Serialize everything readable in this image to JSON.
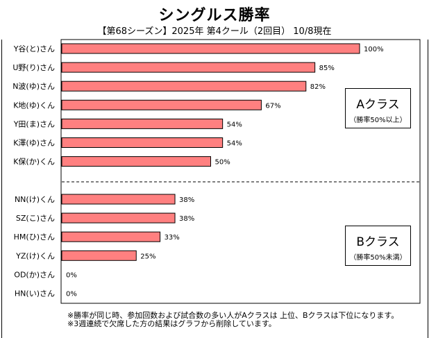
{
  "chart_data": {
    "type": "bar",
    "orientation": "horizontal",
    "title": "シングルス勝率",
    "subtitle": "【第68シーズン】2025年 第4クール（2回目） 10/8現在",
    "xlabel": "",
    "ylabel": "",
    "xlim": [
      0,
      100
    ],
    "grid": false,
    "bar_color": "#FF8080",
    "value_suffix": "%",
    "categories": [
      "Y谷(と)さん",
      "U野(り)さん",
      "N波(ゆ)さん",
      "K地(ゆ)くん",
      "Y田(ま)さん",
      "K澤(ゆ)さん",
      "K保(か)くん",
      "NN(け)くん",
      "SZ(こ)さん",
      "HM(ひ)さん",
      "YZ(け)くん",
      "OD(か)さん",
      "HN(い)さん"
    ],
    "values": [
      100,
      85,
      82,
      67,
      54,
      54,
      50,
      38,
      38,
      33,
      25,
      0,
      0
    ],
    "groups": [
      {
        "name": "Aクラス",
        "note": "（勝率50%以上）",
        "count": 7
      },
      {
        "name": "Bクラス",
        "note": "（勝率50%未満）",
        "count": 6
      }
    ],
    "divider": "dashed line between Aクラス and Bクラス"
  },
  "notes": [
    "※勝率が同じ時、参加回数および試合数の多い人がAクラスは 上位、Bクラスは下位になります。",
    "※3週連続で欠席した方の結果はグラフから削除しています。"
  ]
}
